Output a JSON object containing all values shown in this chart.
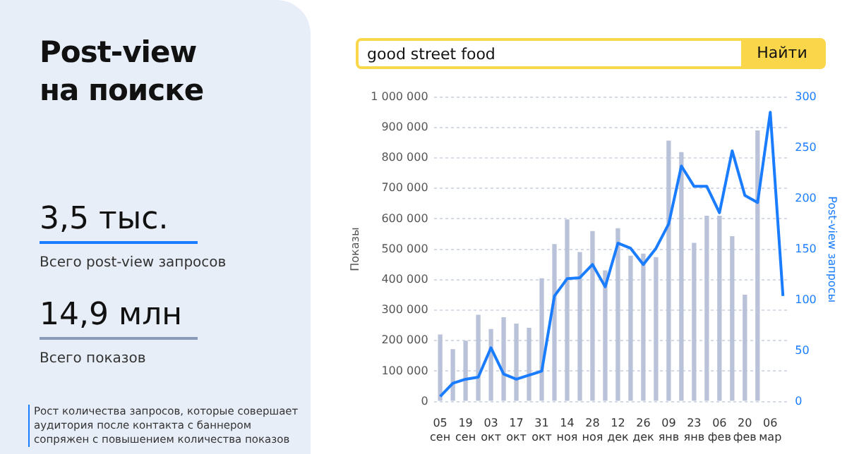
{
  "chart_data": {
    "type": "bar",
    "title": "Post-view на поиске",
    "ylabel": "Показы",
    "y2label": "Post-view запросы",
    "annotations": [
      "good street food",
      "Найти",
      "3,5 тыс.",
      "Всего post-view запросов",
      "14,9 млн",
      "Всего показов",
      "Рост количества запросов, которые совершает аудитория после контакта с баннером сопряжен с повышением количества показов"
    ],
    "categories": [
      "05 сен",
      null,
      "19 сен",
      null,
      "03 окт",
      null,
      "17 окт",
      null,
      "31 окт",
      null,
      "14 ноя",
      null,
      "28 ноя",
      null,
      "12 дек",
      null,
      "26 дек",
      null,
      "09 янв",
      null,
      "23 янв",
      null,
      "06 фев",
      null,
      "20 фев",
      null,
      "06 мар",
      null
    ],
    "series": [
      {
        "color": "#b9c2d8",
        "values": [
          220000,
          172000,
          200000,
          285000,
          238000,
          277000,
          256000,
          242000,
          405000,
          517000,
          598000,
          491000,
          560000,
          431000,
          569000,
          479000,
          486000,
          474000,
          857000,
          819000,
          521000,
          610000,
          610000,
          543000,
          351000,
          890000,
          null,
          null
        ]
      },
      {
        "type": "line",
        "axis": "y2",
        "color": "#1a7cff",
        "values": [
          5,
          18,
          22,
          24,
          53,
          27,
          22,
          26,
          30,
          104,
          121,
          122,
          135,
          113,
          156,
          151,
          135,
          151,
          175,
          232,
          212,
          212,
          186,
          247,
          203,
          196,
          285,
          104
        ]
      }
    ],
    "ylim": [
      0,
      1000000
    ],
    "yticks": [
      0,
      {
        "value": 100000,
        "label": "100 000"
      },
      {
        "value": 200000,
        "label": "200 000"
      },
      {
        "value": 300000,
        "label": "300 000"
      },
      {
        "value": 400000,
        "label": "400 000"
      },
      {
        "value": 500000,
        "label": "500 000"
      },
      {
        "value": 600000,
        "label": "600 000"
      },
      {
        "value": 700000,
        "label": "700 000"
      },
      {
        "value": 800000,
        "label": "800 000"
      },
      {
        "value": 900000,
        "label": "900 000"
      },
      {
        "value": 1000000,
        "label": "1 000 000"
      }
    ],
    "y2lim": [
      0,
      300
    ],
    "y2ticks": [
      0,
      50,
      100,
      150,
      200,
      250,
      300
    ],
    "grid": "y",
    "legend": false,
    "marker": "none",
    "line_style": "solid"
  }
}
